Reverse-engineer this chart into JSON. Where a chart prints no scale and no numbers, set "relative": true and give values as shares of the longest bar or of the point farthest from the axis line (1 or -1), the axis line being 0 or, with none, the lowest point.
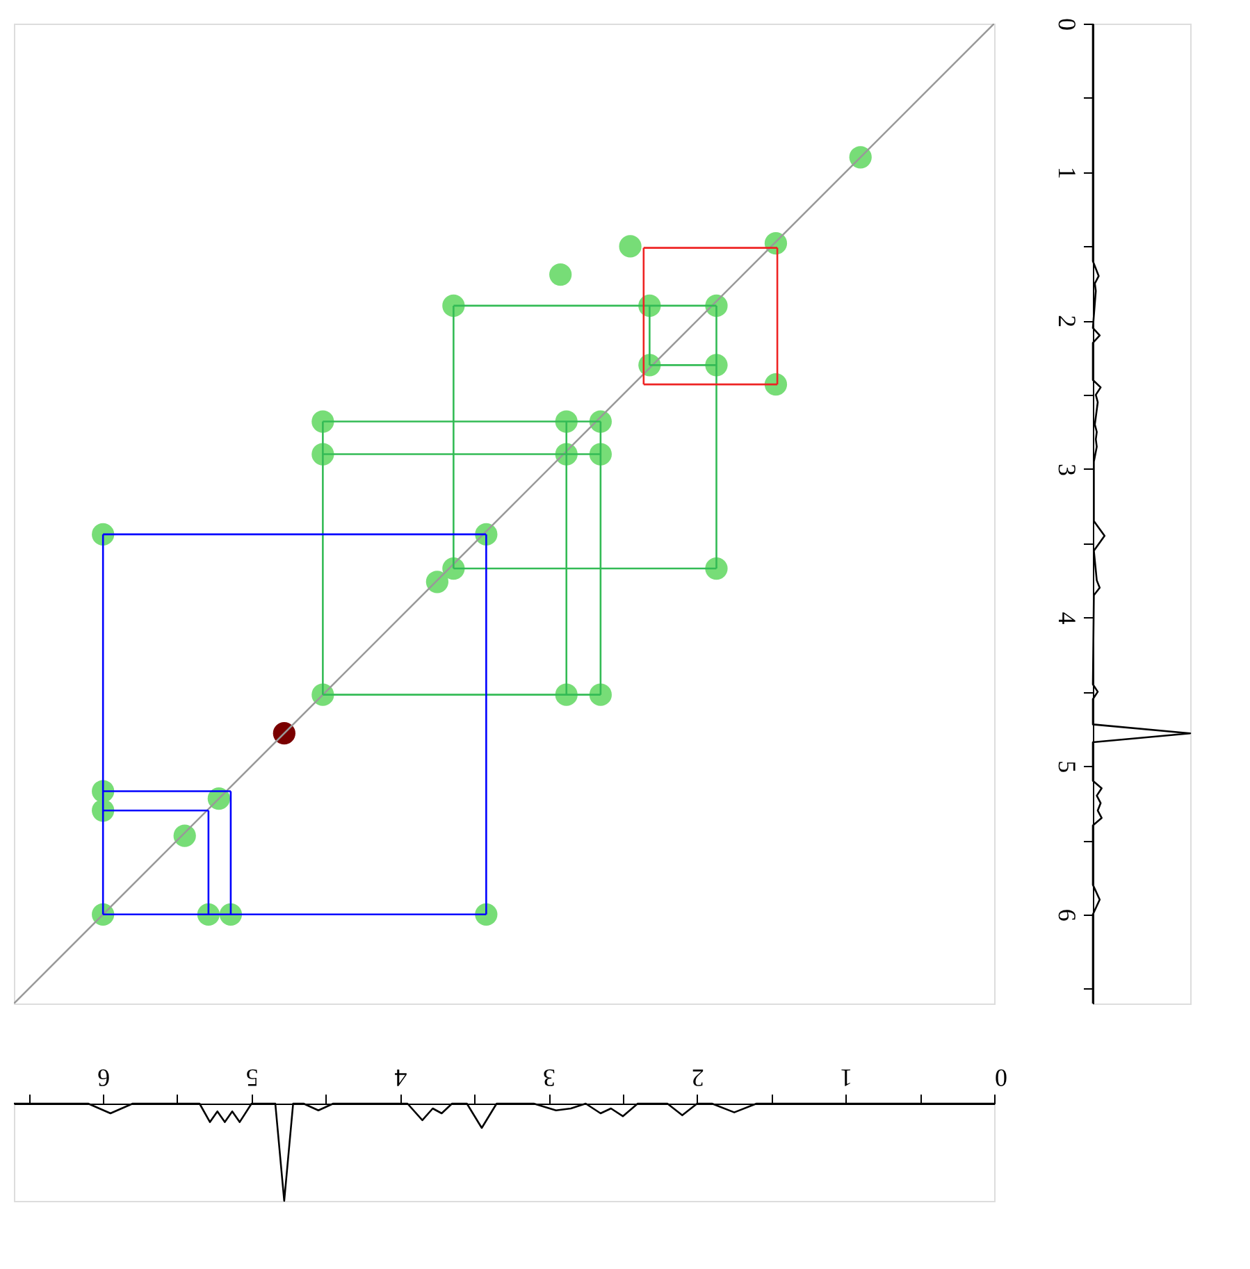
{
  "chart_data": [
    {
      "type": "scatter",
      "xlim": [
        6.6,
        0
      ],
      "ylim": [
        6.6,
        0
      ],
      "tick_labels": false,
      "grid": false,
      "line_style": "solid",
      "series": [
        {
          "type": "line",
          "line_style": "solid",
          "marker": "none",
          "color": "#999999",
          "x": [
            0,
            6.6
          ],
          "values": [
            0,
            6.6
          ]
        },
        {
          "type": "line",
          "marker": "none",
          "color": "#33bb55",
          "x": [
            1.87,
            3.64
          ],
          "values": [
            1.9,
            1.9
          ]
        },
        {
          "type": "line",
          "marker": "none",
          "color": "#33bb55",
          "x": [
            1.87,
            1.87
          ],
          "values": [
            1.9,
            3.67
          ]
        },
        {
          "type": "line",
          "marker": "none",
          "color": "#33bb55",
          "x": [
            1.87,
            3.64
          ],
          "values": [
            3.67,
            3.67
          ]
        },
        {
          "type": "line",
          "marker": "none",
          "color": "#33bb55",
          "x": [
            3.64,
            3.64
          ],
          "values": [
            1.9,
            3.67
          ]
        },
        {
          "type": "line",
          "marker": "none",
          "color": "#33bb55",
          "x": [
            2.65,
            4.52
          ],
          "values": [
            2.68,
            2.68
          ]
        },
        {
          "type": "line",
          "marker": "none",
          "color": "#33bb55",
          "x": [
            2.65,
            2.65
          ],
          "values": [
            2.68,
            4.52
          ]
        },
        {
          "type": "line",
          "marker": "none",
          "color": "#33bb55",
          "x": [
            2.65,
            4.52
          ],
          "values": [
            4.52,
            4.52
          ]
        },
        {
          "type": "line",
          "marker": "none",
          "color": "#33bb55",
          "x": [
            4.52,
            4.52
          ],
          "values": [
            2.68,
            4.52
          ]
        },
        {
          "type": "line",
          "marker": "none",
          "color": "#33bb55",
          "x": [
            2.65,
            4.52
          ],
          "values": [
            2.9,
            2.9
          ]
        },
        {
          "type": "line",
          "marker": "none",
          "color": "#33bb55",
          "x": [
            2.88,
            2.88
          ],
          "values": [
            2.68,
            4.52
          ]
        },
        {
          "type": "line",
          "marker": "none",
          "color": "#33bb55",
          "x": [
            2.32,
            2.32
          ],
          "values": [
            1.9,
            2.3
          ]
        },
        {
          "type": "line",
          "marker": "none",
          "color": "#33bb55",
          "x": [
            1.87,
            2.32
          ],
          "values": [
            2.3,
            2.3
          ]
        },
        {
          "type": "line",
          "marker": "none",
          "color": "#0000ff",
          "x": [
            3.42,
            6.0
          ],
          "values": [
            3.44,
            3.44
          ]
        },
        {
          "type": "line",
          "marker": "none",
          "color": "#0000ff",
          "x": [
            3.42,
            3.42
          ],
          "values": [
            3.44,
            6.0
          ]
        },
        {
          "type": "line",
          "marker": "none",
          "color": "#0000ff",
          "x": [
            3.42,
            6.0
          ],
          "values": [
            6.0,
            6.0
          ]
        },
        {
          "type": "line",
          "marker": "none",
          "color": "#0000ff",
          "x": [
            6.0,
            6.0
          ],
          "values": [
            3.44,
            6.0
          ]
        },
        {
          "type": "line",
          "marker": "none",
          "color": "#0000ff",
          "x": [
            5.14,
            6.0
          ],
          "values": [
            5.17,
            5.17
          ]
        },
        {
          "type": "line",
          "marker": "none",
          "color": "#0000ff",
          "x": [
            5.14,
            5.14
          ],
          "values": [
            5.17,
            6.0
          ]
        },
        {
          "type": "line",
          "marker": "none",
          "color": "#0000ff",
          "x": [
            5.29,
            6.0
          ],
          "values": [
            5.3,
            5.3
          ]
        },
        {
          "type": "line",
          "marker": "none",
          "color": "#0000ff",
          "x": [
            5.29,
            5.29
          ],
          "values": [
            5.3,
            6.0
          ]
        },
        {
          "type": "line",
          "marker": "none",
          "color": "#ee2222",
          "x": [
            1.46,
            2.36
          ],
          "values": [
            1.51,
            1.51
          ]
        },
        {
          "type": "line",
          "marker": "none",
          "color": "#ee2222",
          "x": [
            1.46,
            1.46
          ],
          "values": [
            1.51,
            2.43
          ]
        },
        {
          "type": "line",
          "marker": "none",
          "color": "#ee2222",
          "x": [
            1.46,
            2.36
          ],
          "values": [
            2.43,
            2.43
          ]
        },
        {
          "type": "line",
          "marker": "none",
          "color": "#ee2222",
          "x": [
            2.36,
            2.36
          ],
          "values": [
            1.51,
            2.43
          ]
        },
        {
          "type": "scatter",
          "marker": "circle",
          "x": [
            0.9,
            1.47,
            1.87,
            2.32,
            1.87,
            2.32,
            2.45,
            2.92,
            1.47,
            2.65,
            2.88,
            4.52,
            2.88,
            2.65,
            4.52,
            3.64,
            1.87,
            3.64,
            3.75,
            3.42,
            4.52,
            2.88,
            2.65,
            4.78,
            6.0,
            6.0,
            5.22,
            5.45,
            6.0,
            5.29,
            5.14,
            3.42,
            6.0
          ],
          "values": [
            0.9,
            1.48,
            1.9,
            1.9,
            2.3,
            2.3,
            1.5,
            1.69,
            2.43,
            2.68,
            2.68,
            2.68,
            2.9,
            2.9,
            2.9,
            1.9,
            3.67,
            3.67,
            3.76,
            3.44,
            4.52,
            4.52,
            4.52,
            4.78,
            5.17,
            5.3,
            5.22,
            5.47,
            6.0,
            6.0,
            6.0,
            6.0,
            3.44
          ],
          "colors": [
            "#77dd77",
            "#77dd77",
            "#77dd77",
            "#77dd77",
            "#77dd77",
            "#77dd77",
            "#77dd77",
            "#77dd77",
            "#77dd77",
            "#77dd77",
            "#77dd77",
            "#77dd77",
            "#77dd77",
            "#77dd77",
            "#77dd77",
            "#77dd77",
            "#77dd77",
            "#77dd77",
            "#77dd77",
            "#77dd77",
            "#77dd77",
            "#77dd77",
            "#77dd77",
            "#7a0000",
            "#77dd77",
            "#77dd77",
            "#77dd77",
            "#77dd77",
            "#77dd77",
            "#77dd77",
            "#77dd77",
            "#77dd77",
            "#77dd77"
          ]
        }
      ]
    },
    {
      "type": "line",
      "relative": true,
      "orientation": "horizontal",
      "tick_labels": "y",
      "ylim": [
        6.6,
        0
      ],
      "yticks": [
        0,
        {
          "value": 0.5,
          "label": null
        },
        1,
        {
          "value": 1.5,
          "label": null
        },
        2,
        {
          "value": 2.5,
          "label": null
        },
        3,
        {
          "value": 3.5,
          "label": null
        },
        4,
        {
          "value": 4.5,
          "label": null
        },
        5,
        {
          "value": 5.5,
          "label": null
        },
        6,
        {
          "value": 6.5,
          "label": null
        }
      ],
      "series": [
        {
          "color": "#000000",
          "x": [
            0,
            1.6,
            1.7,
            1.75,
            1.8,
            2.05,
            2.1,
            2.15,
            2.4,
            2.45,
            2.5,
            2.55,
            2.7,
            2.75,
            2.8,
            2.85,
            2.95,
            3.35,
            3.45,
            3.55,
            3.75,
            3.8,
            3.85,
            4.45,
            4.5,
            4.55,
            4.72,
            4.78,
            4.84,
            5.1,
            5.15,
            5.2,
            5.25,
            5.3,
            5.35,
            5.4,
            5.8,
            5.9,
            6.0,
            6.6
          ],
          "values": [
            0,
            0,
            0.06,
            0.02,
            0.03,
            0,
            0.07,
            0,
            0,
            0.08,
            0.03,
            0.05,
            0.02,
            0.04,
            0.03,
            0.04,
            0.01,
            0.01,
            0.12,
            0.01,
            0.04,
            0.07,
            0.01,
            0,
            0.05,
            0,
            0,
            1,
            0,
            0,
            0.09,
            0.04,
            0.08,
            0.05,
            0.09,
            0,
            0,
            0.07,
            0,
            0
          ]
        }
      ]
    },
    {
      "type": "line",
      "relative": true,
      "tick_labels": "x",
      "xlim": [
        6.6,
        0
      ],
      "xticks": [
        0,
        {
          "value": 0.5,
          "label": null
        },
        1,
        {
          "value": 1.5,
          "label": null
        },
        2,
        {
          "value": 2.5,
          "label": null
        },
        3,
        {
          "value": 3.5,
          "label": null
        },
        4,
        {
          "value": 4.5,
          "label": null
        },
        5,
        {
          "value": 5.5,
          "label": null
        },
        6,
        {
          "value": 6.5,
          "label": null
        }
      ],
      "series": [
        {
          "color": "#000000",
          "x": [
            0,
            1.6,
            1.75,
            1.9,
            2.0,
            2.1,
            2.2,
            2.4,
            2.5,
            2.58,
            2.65,
            2.75,
            2.85,
            2.95,
            3.1,
            3.35,
            3.45,
            3.55,
            3.65,
            3.72,
            3.78,
            3.85,
            3.95,
            4.45,
            4.55,
            4.65,
            4.72,
            4.78,
            4.84,
            5.0,
            5.08,
            5.13,
            5.18,
            5.23,
            5.28,
            5.35,
            5.8,
            5.95,
            6.1,
            6.6
          ],
          "values": [
            0,
            0,
            -0.09,
            0,
            0,
            -0.12,
            0,
            0,
            -0.13,
            -0.05,
            -0.1,
            0,
            -0.05,
            -0.07,
            0,
            0,
            -0.25,
            0,
            0,
            -0.1,
            -0.05,
            -0.17,
            0,
            0,
            -0.07,
            0,
            0,
            -1,
            0,
            0,
            -0.19,
            -0.08,
            -0.19,
            -0.08,
            -0.19,
            0,
            0,
            -0.1,
            0,
            0
          ]
        }
      ]
    }
  ]
}
